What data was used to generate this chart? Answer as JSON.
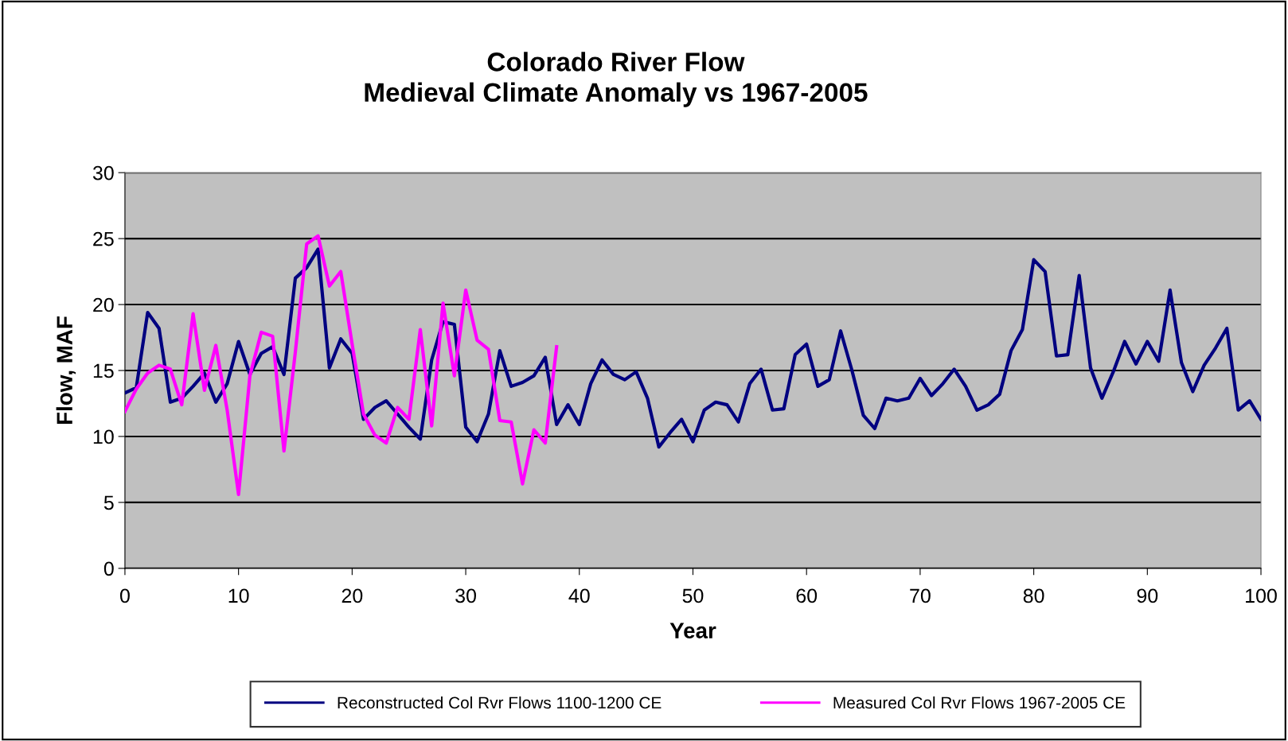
{
  "chart_data": {
    "type": "line",
    "title": "Colorado River Flow\nMedieval Climate Anomaly vs 1967-2005",
    "xlabel": "Year",
    "ylabel": "Flow, MAF",
    "xlim": [
      0,
      100
    ],
    "xticks": [
      0,
      10,
      20,
      30,
      40,
      50,
      60,
      70,
      80,
      90,
      100
    ],
    "ylim": [
      0,
      30
    ],
    "yticks": [
      0,
      5,
      10,
      15,
      20,
      25,
      30
    ],
    "grid": "y",
    "legend": "bottom",
    "marker": "none",
    "line_style": "solid",
    "series": [
      {
        "name": "Reconstructed Col Rvr Flows 1100-1200 CE",
        "color": "#000080",
        "x": [
          0,
          1,
          2,
          3,
          4,
          5,
          6,
          7,
          8,
          9,
          10,
          11,
          12,
          13,
          14,
          15,
          16,
          17,
          18,
          19,
          20,
          21,
          22,
          23,
          24,
          25,
          26,
          27,
          28,
          29,
          30,
          31,
          32,
          33,
          34,
          35,
          36,
          37,
          38,
          39,
          40,
          41,
          42,
          43,
          44,
          45,
          46,
          47,
          48,
          49,
          50,
          51,
          52,
          53,
          54,
          55,
          56,
          57,
          58,
          59,
          60,
          61,
          62,
          63,
          64,
          65,
          66,
          67,
          68,
          69,
          70,
          71,
          72,
          73,
          74,
          75,
          76,
          77,
          78,
          79,
          80,
          81,
          82,
          83,
          84,
          85,
          86,
          87,
          88,
          89,
          90,
          91,
          92,
          93,
          94,
          95,
          96,
          97,
          98,
          99,
          100
        ],
        "values": [
          13.3,
          13.7,
          19.4,
          18.2,
          12.6,
          12.9,
          13.8,
          14.8,
          12.6,
          14.0,
          17.2,
          14.7,
          16.3,
          16.8,
          14.7,
          22.0,
          22.8,
          24.2,
          15.2,
          17.4,
          16.3,
          11.3,
          12.2,
          12.7,
          11.7,
          10.7,
          9.8,
          15.8,
          18.7,
          18.5,
          10.7,
          9.6,
          11.7,
          16.5,
          13.8,
          14.1,
          14.6,
          16.0,
          10.9,
          12.4,
          10.9,
          14.0,
          15.8,
          14.7,
          14.3,
          14.9,
          12.9,
          9.2,
          10.3,
          11.3,
          9.6,
          12.0,
          12.6,
          12.4,
          11.1,
          14.0,
          15.1,
          12.0,
          12.1,
          16.2,
          17.0,
          13.8,
          14.3,
          18.0,
          15.0,
          11.6,
          10.6,
          12.9,
          12.7,
          12.9,
          14.4,
          13.1,
          14.0,
          15.1,
          13.8,
          12.0,
          12.4,
          13.2,
          16.5,
          18.1,
          23.4,
          22.5,
          16.1,
          16.2,
          22.2,
          15.2,
          12.9,
          14.9,
          17.2,
          15.5,
          17.2,
          15.7,
          21.1,
          15.6,
          13.4,
          15.4,
          16.7,
          18.2,
          12.0,
          12.7,
          11.3
        ]
      },
      {
        "name": "Measured Col Rvr Flows 1967-2005 CE",
        "color": "#ff00ff",
        "x": [
          0,
          1,
          2,
          3,
          4,
          5,
          6,
          7,
          8,
          9,
          10,
          11,
          12,
          13,
          14,
          15,
          16,
          17,
          18,
          19,
          20,
          21,
          22,
          23,
          24,
          25,
          26,
          27,
          28,
          29,
          30,
          31,
          32,
          33,
          34,
          35,
          36,
          37,
          38
        ],
        "values": [
          11.9,
          13.6,
          14.8,
          15.4,
          15.1,
          12.4,
          19.3,
          13.5,
          16.9,
          12.0,
          5.6,
          14.6,
          17.9,
          17.6,
          8.9,
          16.4,
          24.6,
          25.2,
          21.4,
          22.5,
          17.0,
          11.7,
          10.1,
          9.5,
          12.2,
          11.3,
          18.1,
          10.8,
          20.1,
          14.6,
          21.1,
          17.3,
          16.6,
          11.2,
          11.1,
          6.4,
          10.5,
          9.5,
          16.8
        ]
      }
    ]
  }
}
